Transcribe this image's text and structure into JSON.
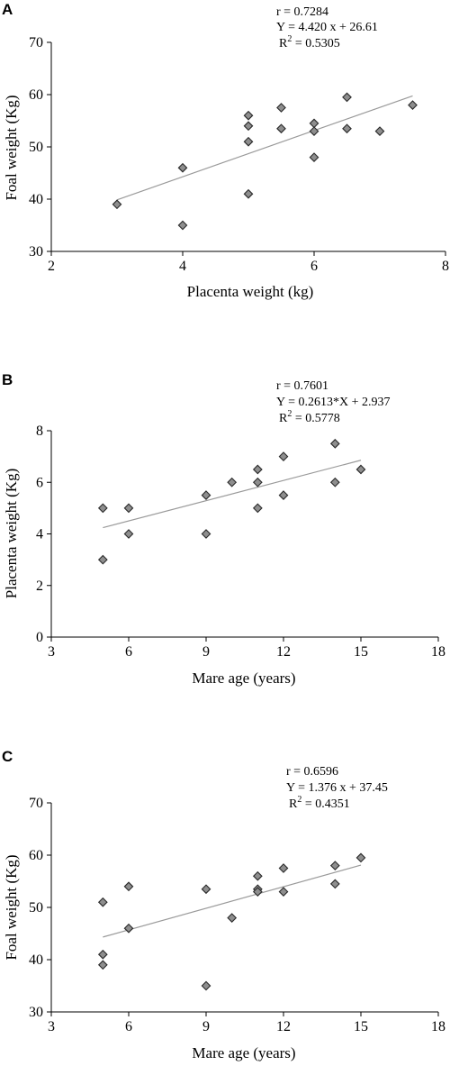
{
  "chart_data": [
    {
      "type": "scatter",
      "panel": "A",
      "xlabel": "Placenta weight (kg)",
      "ylabel": "Foal weight (Kg)",
      "xlim": [
        2,
        8
      ],
      "ylim": [
        30,
        70
      ],
      "xticks": [
        "2",
        "4",
        "6",
        "8"
      ],
      "yticks": [
        "30",
        "40",
        "50",
        "60",
        "70"
      ],
      "grid": false,
      "stats": {
        "r": "r = 0.7284",
        "equation": "Y = 4.420 x + 26.61",
        "r2_prefix": "R",
        "r2_exp": "2",
        "r2_value": " = 0.5305"
      },
      "fit": {
        "slope": 4.42,
        "intercept": 26.61,
        "x_range": [
          3,
          7.5
        ]
      },
      "points": [
        {
          "x": 3,
          "y": 39
        },
        {
          "x": 4,
          "y": 46
        },
        {
          "x": 4,
          "y": 35
        },
        {
          "x": 5,
          "y": 56
        },
        {
          "x": 5,
          "y": 54
        },
        {
          "x": 5,
          "y": 51
        },
        {
          "x": 5,
          "y": 41
        },
        {
          "x": 5.5,
          "y": 57.5
        },
        {
          "x": 5.5,
          "y": 53.5
        },
        {
          "x": 6,
          "y": 54.5
        },
        {
          "x": 6,
          "y": 53
        },
        {
          "x": 6,
          "y": 48
        },
        {
          "x": 6.5,
          "y": 59.5
        },
        {
          "x": 6.5,
          "y": 53.5
        },
        {
          "x": 7,
          "y": 53
        },
        {
          "x": 7.5,
          "y": 58
        }
      ]
    },
    {
      "type": "scatter",
      "panel": "B",
      "xlabel": "Mare age (years)",
      "ylabel": "Placenta weight (Kg)",
      "xlim": [
        3,
        18
      ],
      "ylim": [
        0,
        8
      ],
      "xticks": [
        "3",
        "6",
        "9",
        "12",
        "15",
        "18"
      ],
      "yticks": [
        "0",
        "2",
        "4",
        "6",
        "8"
      ],
      "grid": false,
      "stats": {
        "r": "r = 0.7601",
        "equation": "Y = 0.2613*X + 2.937",
        "r2_prefix": "R",
        "r2_exp": "2",
        "r2_value": " = 0.5778"
      },
      "fit": {
        "slope": 0.2613,
        "intercept": 2.937,
        "x_range": [
          5,
          15
        ]
      },
      "points": [
        {
          "x": 5,
          "y": 5
        },
        {
          "x": 5,
          "y": 3
        },
        {
          "x": 6,
          "y": 5
        },
        {
          "x": 6,
          "y": 4
        },
        {
          "x": 9,
          "y": 5.5
        },
        {
          "x": 9,
          "y": 4
        },
        {
          "x": 10,
          "y": 6
        },
        {
          "x": 11,
          "y": 6.5
        },
        {
          "x": 11,
          "y": 6
        },
        {
          "x": 11,
          "y": 5
        },
        {
          "x": 12,
          "y": 7
        },
        {
          "x": 12,
          "y": 5.5
        },
        {
          "x": 14,
          "y": 7.5
        },
        {
          "x": 14,
          "y": 6
        },
        {
          "x": 15,
          "y": 6.5
        }
      ]
    },
    {
      "type": "scatter",
      "panel": "C",
      "xlabel": "Mare age (years)",
      "ylabel": "Foal weight (Kg)",
      "xlim": [
        3,
        18
      ],
      "ylim": [
        30,
        70
      ],
      "xticks": [
        "3",
        "6",
        "9",
        "12",
        "15",
        "18"
      ],
      "yticks": [
        "30",
        "40",
        "50",
        "60",
        "70"
      ],
      "grid": false,
      "stats": {
        "r": "r = 0.6596",
        "equation": "Y = 1.376 x + 37.45",
        "r2_prefix": "R",
        "r2_exp": "2",
        "r2_value": " = 0.4351"
      },
      "fit": {
        "slope": 1.376,
        "intercept": 37.45,
        "x_range": [
          5,
          15
        ]
      },
      "points": [
        {
          "x": 5,
          "y": 51
        },
        {
          "x": 5,
          "y": 41
        },
        {
          "x": 5,
          "y": 39
        },
        {
          "x": 6,
          "y": 54
        },
        {
          "x": 6,
          "y": 46
        },
        {
          "x": 9,
          "y": 53.5
        },
        {
          "x": 9,
          "y": 35
        },
        {
          "x": 10,
          "y": 48
        },
        {
          "x": 11,
          "y": 56
        },
        {
          "x": 11,
          "y": 53.5
        },
        {
          "x": 11,
          "y": 53
        },
        {
          "x": 12,
          "y": 57.5
        },
        {
          "x": 12,
          "y": 53
        },
        {
          "x": 14,
          "y": 58
        },
        {
          "x": 14,
          "y": 54.5
        },
        {
          "x": 15,
          "y": 59.5
        }
      ]
    }
  ]
}
